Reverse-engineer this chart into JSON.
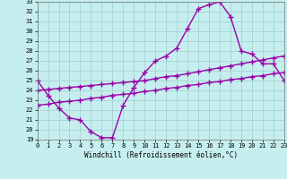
{
  "xlabel": "Windchill (Refroidissement éolien,°C)",
  "xlim": [
    0,
    23
  ],
  "ylim": [
    19,
    33
  ],
  "xticks": [
    0,
    1,
    2,
    3,
    4,
    5,
    6,
    7,
    8,
    9,
    10,
    11,
    12,
    13,
    14,
    15,
    16,
    17,
    18,
    19,
    20,
    21,
    22,
    23
  ],
  "yticks": [
    19,
    20,
    21,
    22,
    23,
    24,
    25,
    26,
    27,
    28,
    29,
    30,
    31,
    32,
    33
  ],
  "background_color": "#c6eeee",
  "grid_color": "#9dcfcf",
  "line_color": "#9900aa",
  "line_width": 1.0,
  "marker": "+",
  "marker_size": 4,
  "font": "monospace",
  "line1_x": [
    0,
    1,
    2,
    3,
    4,
    5,
    6,
    7,
    8,
    9,
    10,
    11,
    12,
    13,
    14,
    15,
    16,
    17,
    18,
    19,
    20,
    21,
    22,
    23
  ],
  "line1_y": [
    25.0,
    23.5,
    22.2,
    21.2,
    21.0,
    19.8,
    19.2,
    19.2,
    22.5,
    24.3,
    25.8,
    27.0,
    27.5,
    28.3,
    30.3,
    32.3,
    32.7,
    33.0,
    31.5,
    28.0,
    27.7,
    26.7,
    26.7,
    25.0
  ],
  "line2_x": [
    0,
    1,
    2,
    3,
    4,
    5,
    6,
    7,
    8,
    9,
    10,
    11,
    12,
    13,
    14,
    15,
    16,
    17,
    18,
    19,
    20,
    21,
    22,
    23
  ],
  "line2_y": [
    24.0,
    24.1,
    24.2,
    24.3,
    24.4,
    24.5,
    24.6,
    24.7,
    24.8,
    24.9,
    25.0,
    25.2,
    25.4,
    25.5,
    25.7,
    25.9,
    26.1,
    26.3,
    26.5,
    26.7,
    26.9,
    27.1,
    27.3,
    27.5
  ],
  "line3_x": [
    0,
    1,
    2,
    3,
    4,
    5,
    6,
    7,
    8,
    9,
    10,
    11,
    12,
    13,
    14,
    15,
    16,
    17,
    18,
    19,
    20,
    21,
    22,
    23
  ],
  "line3_y": [
    22.5,
    22.6,
    22.8,
    22.9,
    23.0,
    23.2,
    23.3,
    23.5,
    23.6,
    23.7,
    23.9,
    24.0,
    24.2,
    24.3,
    24.5,
    24.6,
    24.8,
    24.9,
    25.1,
    25.2,
    25.4,
    25.5,
    25.7,
    25.8
  ]
}
